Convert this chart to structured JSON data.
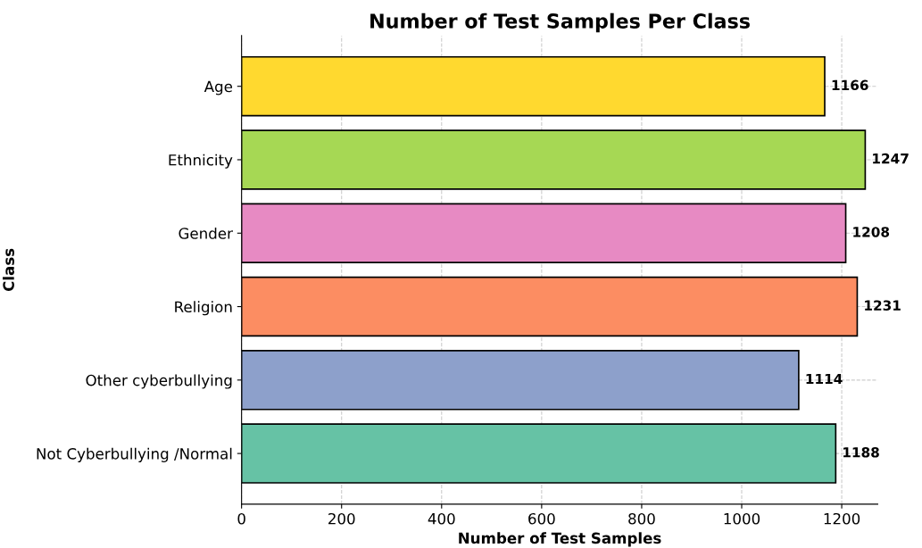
{
  "chart_data": {
    "type": "bar",
    "orientation": "horizontal",
    "title": "Number of Test Samples Per Class",
    "xlabel": "Number of Test Samples",
    "ylabel": "Class",
    "categories": [
      "Age",
      "Ethnicity",
      "Gender",
      "Religion",
      "Other cyberbullying",
      "Not Cyberbullying /Normal"
    ],
    "values": [
      1166,
      1247,
      1208,
      1231,
      1114,
      1188
    ],
    "colors": [
      "#ffd92f",
      "#a6d854",
      "#e78ac3",
      "#fc8d62",
      "#8da0cb",
      "#66c2a5"
    ],
    "xlim": [
      0,
      1272
    ],
    "xticks": [
      0,
      200,
      400,
      600,
      800,
      1000,
      1200
    ],
    "grid": true,
    "data_labels": true
  }
}
